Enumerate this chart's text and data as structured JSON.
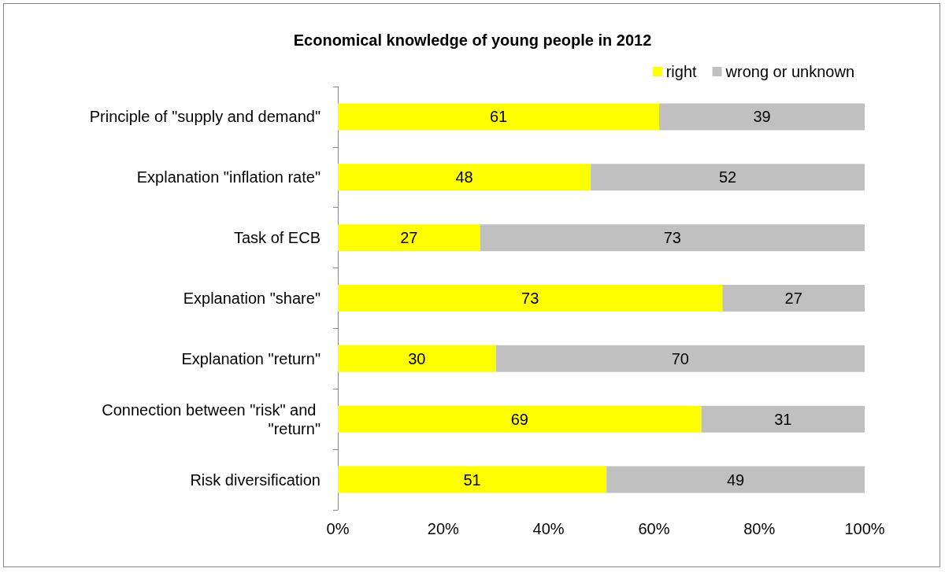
{
  "chart_data": {
    "type": "bar",
    "title": "Economical knowledge of young people in 2012",
    "orientation": "horizontal",
    "stacked": true,
    "data_labels": true,
    "legend": "top right",
    "grid": false,
    "categories": [
      "Principle of \"supply and demand\"",
      "Explanation \"inflation rate\"",
      "Task of ECB",
      "Explanation \"share\"",
      "Explanation \"return\"",
      "Connection between \"risk\" and \"return\"",
      "Risk diversification"
    ],
    "series": [
      {
        "name": "right",
        "color": "#ffff00",
        "values": [
          61,
          48,
          27,
          73,
          30,
          69,
          51
        ]
      },
      {
        "name": "wrong or unknown",
        "color": "#c0c0c0",
        "values": [
          39,
          52,
          73,
          27,
          70,
          31,
          49
        ]
      }
    ],
    "xlim": [
      0,
      100
    ],
    "xticks": [
      {
        "value": 0,
        "label": "0%"
      },
      {
        "value": 20,
        "label": "20%"
      },
      {
        "value": 40,
        "label": "40%"
      },
      {
        "value": 60,
        "label": "60%"
      },
      {
        "value": 80,
        "label": "80%"
      },
      {
        "value": 100,
        "label": "100%"
      }
    ]
  }
}
